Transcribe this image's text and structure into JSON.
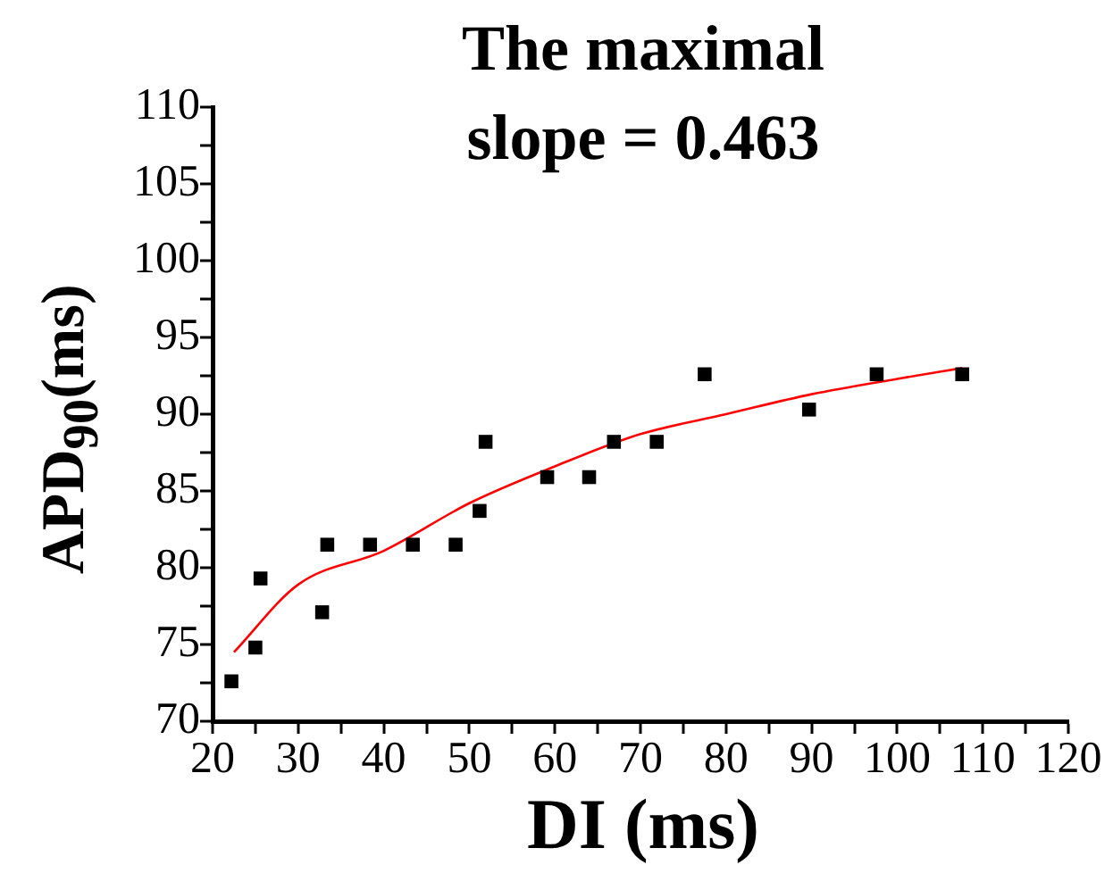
{
  "chart_data": {
    "type": "scatter",
    "title": "The maximal\nslope = 0.463",
    "xlabel": "DI (ms)",
    "ylabel": "APD$_{90}$(ms)",
    "xlim": [
      20,
      120
    ],
    "xticks": [
      20,
      {
        "value": 25,
        "label": null
      },
      30,
      {
        "value": 35,
        "label": null
      },
      40,
      {
        "value": 45,
        "label": null
      },
      50,
      {
        "value": 55,
        "label": null
      },
      60,
      {
        "value": 65,
        "label": null
      },
      70,
      {
        "value": 75,
        "label": null
      },
      80,
      {
        "value": 85,
        "label": null
      },
      90,
      {
        "value": 95,
        "label": null
      },
      100,
      {
        "value": 105,
        "label": null
      },
      110,
      {
        "value": 115,
        "label": null
      },
      120
    ],
    "ylim": [
      70,
      110
    ],
    "yticks": [
      70,
      {
        "value": 72.5,
        "label": null
      },
      75,
      {
        "value": 77.5,
        "label": null
      },
      80,
      {
        "value": 82.5,
        "label": null
      },
      85,
      {
        "value": 87.5,
        "label": null
      },
      90,
      {
        "value": 92.5,
        "label": null
      },
      95,
      {
        "value": 97.5,
        "label": null
      },
      100,
      {
        "value": 102.5,
        "label": null
      },
      105,
      {
        "value": 107.5,
        "label": null
      },
      110
    ],
    "grid": false,
    "legend": false,
    "series": [
      {
        "marker": "square",
        "color": "#000000",
        "x": [
          22.2,
          25.0,
          25.6,
          32.8,
          33.4,
          38.4,
          43.4,
          48.4,
          51.2,
          51.9,
          59.1,
          64.0,
          66.9,
          71.9,
          77.5,
          89.7,
          97.6,
          107.6
        ],
        "values": [
          72.6,
          74.8,
          79.3,
          77.1,
          81.5,
          81.5,
          81.5,
          81.5,
          83.7,
          88.2,
          85.9,
          85.9,
          88.2,
          88.2,
          92.6,
          90.3,
          92.6,
          92.6
        ]
      },
      {
        "type": "line",
        "marker": "none",
        "line_style": "solid",
        "color": "#ff0000",
        "x": [
          22.5,
          30,
          40,
          50,
          60,
          70,
          80,
          90,
          100,
          107.6
        ],
        "values": [
          74.5,
          78.9,
          81.1,
          84.2,
          86.6,
          88.7,
          90.0,
          91.3,
          92.3,
          93.0
        ]
      }
    ]
  }
}
